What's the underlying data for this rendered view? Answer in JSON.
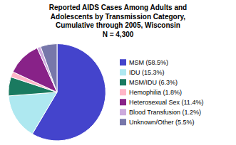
{
  "chart_data": {
    "type": "pie",
    "title": "Reported AIDS Cases Among Adults and\nAdolescents by Transmission Category,\nCumulative through 2005, Wisconsin\nN = 4,300",
    "categories": [
      "MSM (58.5%)",
      "IDU (15.3%)",
      "MSM/IDU (6.3%)",
      "Hemophilia (1.8%)",
      "Heterosexual Sex (11.4%)",
      "Blood Transfusion (1.2%)",
      "Unknown/Other (5.5%)"
    ],
    "values": [
      58.5,
      15.3,
      6.3,
      1.8,
      11.4,
      1.2,
      5.5
    ],
    "colors": [
      "#4444cc",
      "#aee8f0",
      "#1a7a60",
      "#ffb6c8",
      "#882288",
      "#ccaadd",
      "#7777aa"
    ],
    "legend": "right"
  }
}
